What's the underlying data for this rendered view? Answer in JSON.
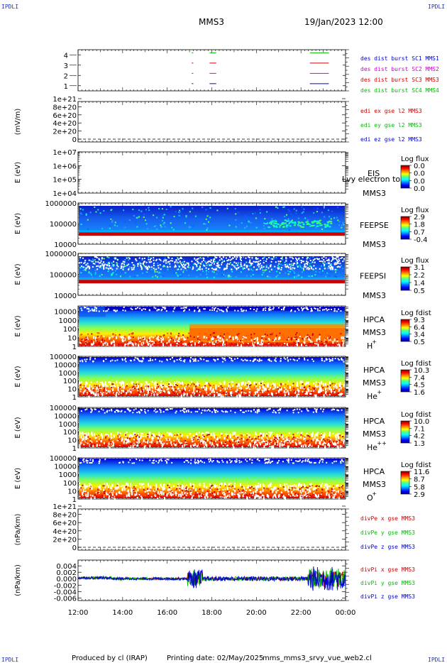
{
  "header": {
    "corner_tl": "IPDLI",
    "corner_tr": "IPDLI",
    "corner_bl": "IPDLI",
    "corner_br": "IPDLI",
    "mission": "MMS3",
    "date": "19/Jan/2023 12:00"
  },
  "footer": {
    "producer": "Produced by cl (IRAP)",
    "printing": "Printing date: 02/May/2025",
    "script": "mms_mms3_srvy_vue_web2.cl"
  },
  "overlap_text": "Lvy electron to",
  "colors": {
    "mms1": "#0000cc",
    "mms2": "#cc00cc",
    "mms3": "#cc0000",
    "mms4": "#00bb00"
  },
  "chart_data": [
    {
      "id": "burst",
      "type": "line",
      "ylabel": "",
      "yticks": [
        "1",
        "2",
        "3",
        "4"
      ],
      "ylim": [
        0.5,
        4.5
      ],
      "legend": [
        {
          "text": "des dist burst SC1 MMS1",
          "color": "#0000cc"
        },
        {
          "text": "des dist burst SC2 MMS2",
          "color": "#cc00cc"
        },
        {
          "text": "des dist burst SC3 MMS3",
          "color": "#cc0000"
        },
        {
          "text": "des dist burst SC4 MMS4",
          "color": "#00bb00"
        }
      ],
      "segments": [
        {
          "sc": 1,
          "x": [
            17.1,
            17.17
          ],
          "color": "#0000cc"
        },
        {
          "sc": 1,
          "x": [
            17.9,
            18.2
          ],
          "color": "#0000cc"
        },
        {
          "sc": 1,
          "x": [
            22.4,
            23.25
          ],
          "color": "#0000cc"
        },
        {
          "sc": 2,
          "x": [
            17.1,
            17.17
          ],
          "color": "#cc00cc"
        },
        {
          "sc": 2,
          "x": [
            17.9,
            18.2
          ],
          "color": "#cc00cc"
        },
        {
          "sc": 2,
          "x": [
            22.4,
            23.25
          ],
          "color": "#cc00cc"
        },
        {
          "sc": 3,
          "x": [
            17.1,
            17.17
          ],
          "color": "#cc0000"
        },
        {
          "sc": 3,
          "x": [
            17.9,
            18.2
          ],
          "color": "#cc0000"
        },
        {
          "sc": 3,
          "x": [
            22.4,
            23.25
          ],
          "color": "#cc0000"
        },
        {
          "sc": 4,
          "x": [
            17.1,
            17.17
          ],
          "color": "#00bb00"
        },
        {
          "sc": 4,
          "x": [
            17.9,
            18.2
          ],
          "color": "#00bb00"
        },
        {
          "sc": 4,
          "x": [
            22.4,
            23.25
          ],
          "color": "#00bb00"
        }
      ]
    },
    {
      "id": "edi",
      "type": "line",
      "ylabel": "(mV/m)",
      "yticks": [
        "0",
        "2e+20",
        "4e+20",
        "6e+20",
        "8e+20",
        "1e+21"
      ],
      "ylim": [
        0,
        1e+21
      ],
      "legend": [
        {
          "text": "edi ex gse l2 MMS3",
          "color": "#cc0000"
        },
        {
          "text": "edi ey gse l2 MMS3",
          "color": "#00bb00"
        },
        {
          "text": "edi ez gse l2 MMS3",
          "color": "#0000cc"
        }
      ]
    },
    {
      "id": "eis",
      "type": "heatmap",
      "ylabel": "E (eV)",
      "yticks": [
        "1e+04",
        "1e+05",
        "1e+06",
        "1e+07"
      ],
      "ylim": [
        10000,
        10000000
      ],
      "instrument": "EIS",
      "spacecraft": "MMS3",
      "colorbar_title": "Log flux",
      "colorbar_ticks": [
        "0.0",
        "0.0",
        "0.0",
        "0.0"
      ]
    },
    {
      "id": "feepse",
      "type": "heatmap",
      "ylabel": "E (eV)",
      "yticks": [
        "10000",
        "100000",
        "1000000"
      ],
      "ylim": [
        10000,
        1000000
      ],
      "instrument": "FEEPSE",
      "spacecraft": "MMS3",
      "colorbar_title": "Log flux",
      "colorbar_ticks": [
        "2.9",
        "1.8",
        "0.7",
        "-0.4"
      ]
    },
    {
      "id": "feepsi",
      "type": "heatmap",
      "ylabel": "E (eV)",
      "yticks": [
        "10000",
        "100000",
        "1000000"
      ],
      "ylim": [
        10000,
        1000000
      ],
      "instrument": "FEEPSI",
      "spacecraft": "MMS3",
      "colorbar_title": "Log flux",
      "colorbar_ticks": [
        "3.1",
        "2.2",
        "1.4",
        "0.5"
      ]
    },
    {
      "id": "hpca_h",
      "type": "heatmap",
      "ylabel": "E (eV)",
      "yticks": [
        "1",
        "10",
        "100",
        "1000",
        "10000"
      ],
      "ylim": [
        1,
        40000
      ],
      "instrument": "HPCA",
      "spacecraft": "MMS3",
      "species": "H",
      "species_sup": "+",
      "colorbar_title": "Log fdist",
      "colorbar_ticks": [
        "9.3",
        "6.4",
        "3.4",
        "0.5"
      ]
    },
    {
      "id": "hpca_he",
      "type": "heatmap",
      "ylabel": "E (eV)",
      "yticks": [
        "1",
        "10",
        "100",
        "1000",
        "10000",
        "100000"
      ],
      "ylim": [
        1,
        100000
      ],
      "instrument": "HPCA",
      "spacecraft": "MMS3",
      "species": "He",
      "species_sup": "+",
      "colorbar_title": "Log fdist",
      "colorbar_ticks": [
        "10.3",
        "7.4",
        "4.5",
        "1.6"
      ]
    },
    {
      "id": "hpca_he2",
      "type": "heatmap",
      "ylabel": "E (eV)",
      "yticks": [
        "1",
        "10",
        "100",
        "1000",
        "10000",
        "100000"
      ],
      "ylim": [
        1,
        100000
      ],
      "instrument": "HPCA",
      "spacecraft": "MMS3",
      "species": "He",
      "species_sup": "++",
      "colorbar_title": "Log fdist",
      "colorbar_ticks": [
        "10.0",
        "7.1",
        "4.2",
        "1.3"
      ]
    },
    {
      "id": "hpca_o",
      "type": "heatmap",
      "ylabel": "E (eV)",
      "yticks": [
        "1",
        "10",
        "100",
        "1000",
        "10000",
        "100000"
      ],
      "ylim": [
        1,
        100000
      ],
      "instrument": "HPCA",
      "spacecraft": "MMS3",
      "species": "O",
      "species_sup": "+",
      "colorbar_title": "Log fdist",
      "colorbar_ticks": [
        "11.6",
        "8.7",
        "5.8",
        "2.9"
      ]
    },
    {
      "id": "divpe",
      "type": "line",
      "ylabel": "(nPa/km)",
      "yticks": [
        "0",
        "2e+20",
        "4e+20",
        "6e+20",
        "8e+20",
        "1e+21"
      ],
      "ylim": [
        0,
        1e+21
      ],
      "legend": [
        {
          "text": "divPe x gse MMS3",
          "color": "#cc0000"
        },
        {
          "text": "divPe y gse MMS3",
          "color": "#00bb00"
        },
        {
          "text": "divPe z gse MMS3",
          "color": "#0000cc"
        }
      ]
    },
    {
      "id": "divpi",
      "type": "line",
      "ylabel": "(nPa/km)",
      "yticks": [
        "-0.006",
        "-0.004",
        "-0.002",
        "0.000",
        "0.002",
        "0.004"
      ],
      "ylim": [
        -0.0068,
        0.0058
      ],
      "legend": [
        {
          "text": "divPi x gse MMS3",
          "color": "#cc0000"
        },
        {
          "text": "divPi y gse MMS3",
          "color": "#00bb00"
        },
        {
          "text": "divPi z gse MMS3",
          "color": "#0000cc"
        }
      ]
    }
  ],
  "time_axis": {
    "range_hours": [
      12,
      24
    ],
    "tick_labels": [
      "12:00",
      "14:00",
      "16:00",
      "18:00",
      "20:00",
      "22:00",
      "00:00"
    ]
  }
}
